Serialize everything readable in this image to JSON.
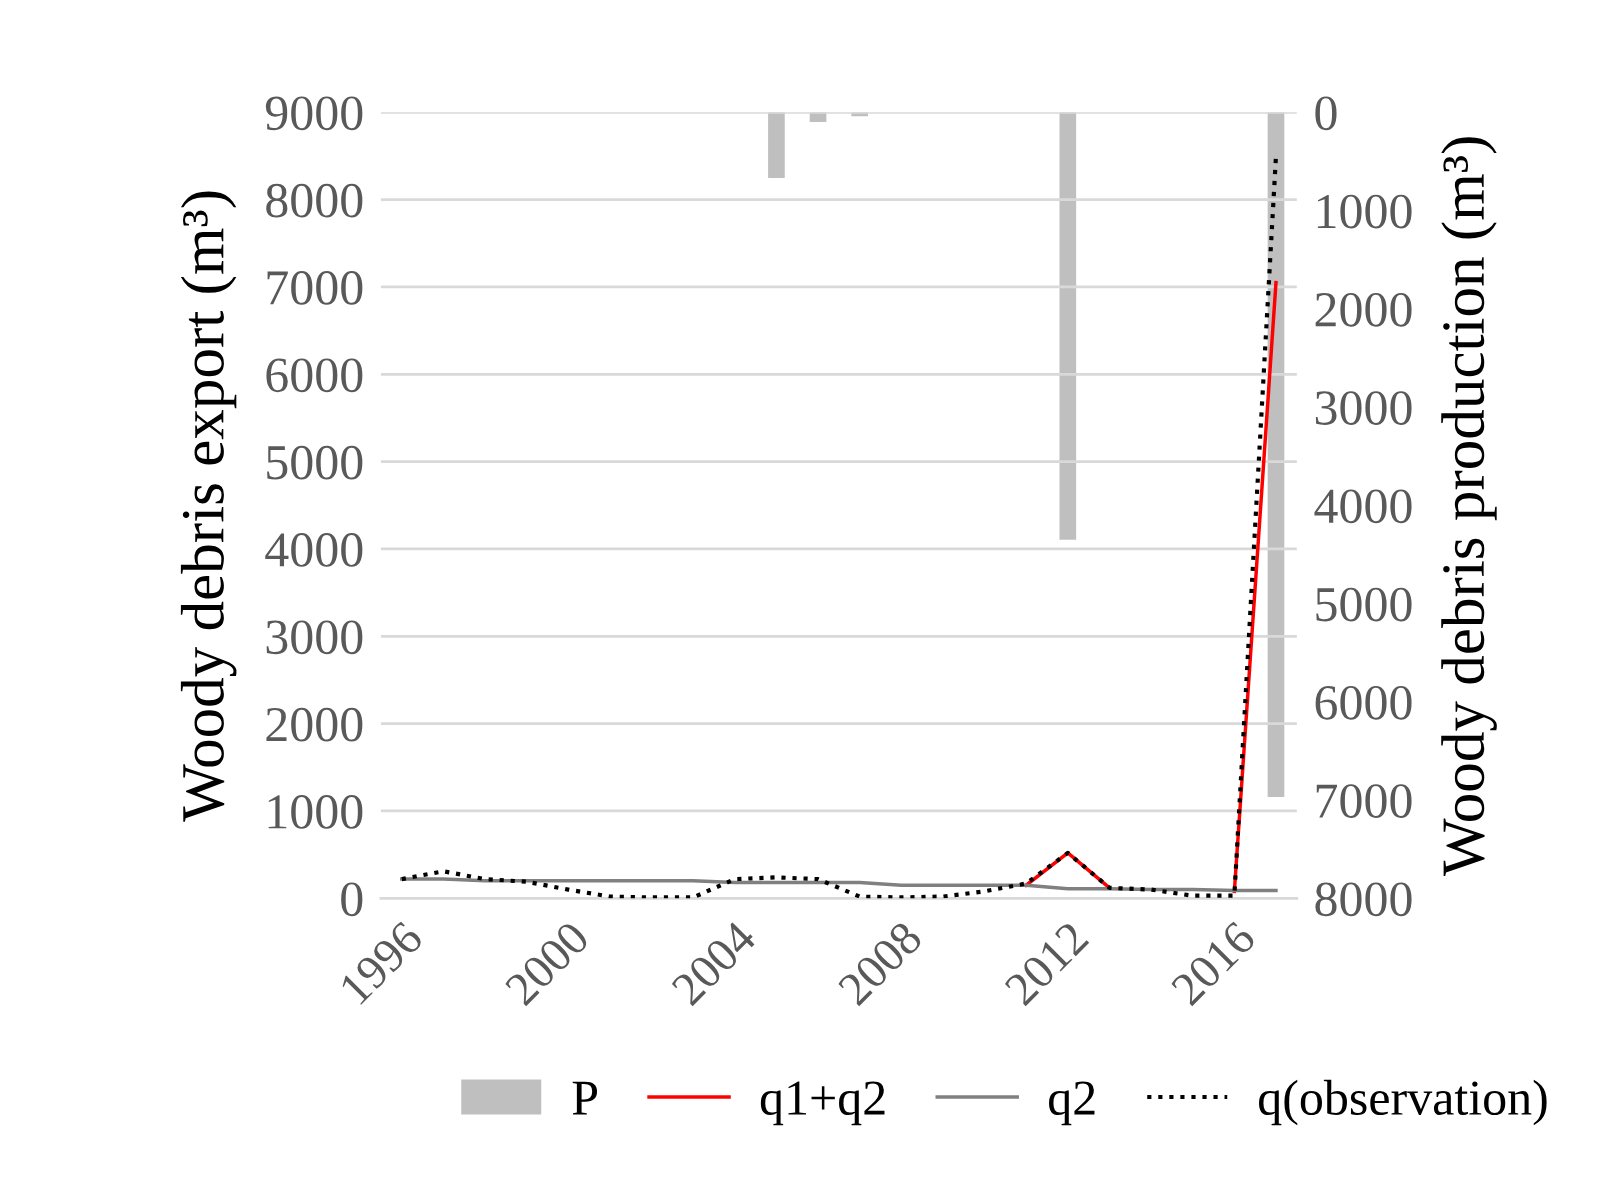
{
  "chart_data": {
    "type": "line",
    "categories": [
      "1996",
      null,
      null,
      null,
      "2000",
      null,
      null,
      null,
      "2004",
      null,
      null,
      null,
      "2008",
      null,
      null,
      null,
      "2012",
      null,
      null,
      null,
      "2016",
      null
    ],
    "ylabel": "Woody debris export (m³)",
    "y2label": "Woody debris production (m³)",
    "ylim": [
      0,
      9000
    ],
    "yticks": [
      0,
      1000,
      2000,
      3000,
      4000,
      5000,
      6000,
      7000,
      8000,
      9000
    ],
    "y2lim": [
      8000,
      0
    ],
    "y2ticks": [
      0,
      1000,
      2000,
      3000,
      4000,
      5000,
      6000,
      7000,
      8000
    ],
    "grid": "y",
    "legend": "bottom",
    "marker": "none",
    "series": [
      {
        "name": "P",
        "type": "bar",
        "axis": "y2",
        "color": "#bfbfbf",
        "values": [
          null,
          null,
          null,
          null,
          null,
          null,
          null,
          null,
          null,
          670,
          100,
          40,
          null,
          null,
          null,
          null,
          4350,
          null,
          null,
          null,
          null,
          6970
        ]
      },
      {
        "name": "q1+q2",
        "color": "#ff0000",
        "line_style": "solid",
        "values": [
          null,
          null,
          null,
          null,
          null,
          null,
          null,
          null,
          null,
          null,
          null,
          null,
          null,
          null,
          null,
          150,
          520,
          120,
          null,
          null,
          80,
          7050
        ]
      },
      {
        "name": "q2",
        "color": "#808080",
        "line_style": "solid",
        "values": [
          220,
          220,
          200,
          200,
          200,
          200,
          200,
          200,
          180,
          180,
          180,
          180,
          150,
          150,
          150,
          150,
          110,
          110,
          100,
          100,
          90,
          90
        ]
      },
      {
        "name": "q(observation)",
        "color": "#000000",
        "line_style": "dotted",
        "values": [
          220,
          310,
          220,
          190,
          100,
          20,
          10,
          10,
          220,
          240,
          220,
          20,
          10,
          20,
          80,
          170,
          520,
          120,
          100,
          30,
          30,
          8500
        ]
      }
    ]
  }
}
